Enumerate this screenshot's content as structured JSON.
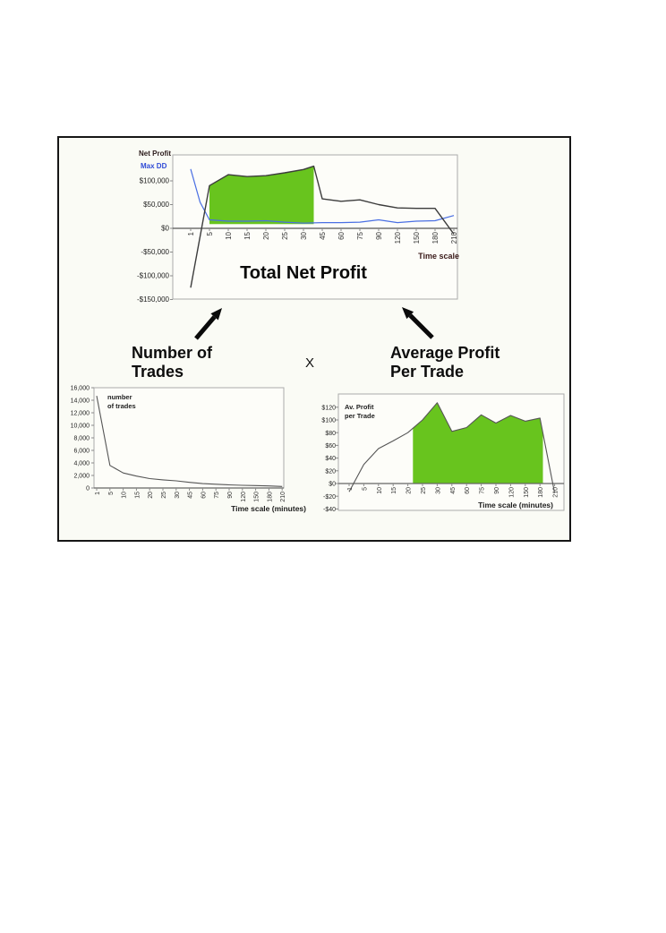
{
  "annotations": {
    "left_factor": {
      "line1": "Number of",
      "line2": "Trades"
    },
    "operator": "X",
    "right_factor": {
      "line1": "Average Profit",
      "line2": "Per Trade"
    }
  },
  "colors": {
    "green_fill": "#68c41e",
    "net_profit_line": "#3c3c3c",
    "max_dd_line": "#4a6fe3",
    "trades_line": "#555555",
    "avprofit_line": "#555555",
    "legend_net_profit": "#2b1a1a",
    "legend_max_dd": "#2f4bd6",
    "time_scale_label": "#3a1a1a",
    "axis_label_dark": "#1c1c1c"
  },
  "chart_data": [
    {
      "id": "total_net_profit",
      "type": "line",
      "title": "Total Net Profit",
      "x_axis_label": "Time scale",
      "categories": [
        "1",
        "5",
        "10",
        "15",
        "20",
        "25",
        "30",
        "45",
        "60",
        "75",
        "90",
        "120",
        "150",
        "180",
        "210"
      ],
      "y_ticks": [
        {
          "v": 100000,
          "label": "$100,000"
        },
        {
          "v": 50000,
          "label": "$50,000"
        },
        {
          "v": 0,
          "label": "$0"
        },
        {
          "v": -50000,
          "label": "-$50,000"
        },
        {
          "v": -100000,
          "label": "-$100,000"
        },
        {
          "v": -150000,
          "label": "-$150,000"
        }
      ],
      "ylim": [
        -150000,
        155000
      ],
      "legend": [
        {
          "label": "Net Profit"
        },
        {
          "label": "Max DD"
        }
      ],
      "series": [
        {
          "name": "Net Profit",
          "points": [
            [
              0,
              -125000
            ],
            [
              1,
              90000
            ],
            [
              2,
              113000
            ],
            [
              3,
              109000
            ],
            [
              4,
              111000
            ],
            [
              5,
              117000
            ],
            [
              6,
              124000
            ],
            [
              6.55,
              131000
            ],
            [
              6.75,
              100000
            ],
            [
              7,
              62000
            ],
            [
              8,
              57000
            ],
            [
              9,
              60000
            ],
            [
              10,
              50000
            ],
            [
              11,
              43000
            ],
            [
              12,
              42000
            ],
            [
              13,
              42000
            ],
            [
              14,
              -12000
            ]
          ]
        },
        {
          "name": "Max DD",
          "points": [
            [
              0,
              125000
            ],
            [
              0.5,
              55000
            ],
            [
              1,
              18000
            ],
            [
              2,
              15000
            ],
            [
              3,
              15000
            ],
            [
              4,
              16000
            ],
            [
              5,
              13000
            ],
            [
              6,
              11000
            ],
            [
              7,
              12000
            ],
            [
              8,
              12000
            ],
            [
              9,
              13000
            ],
            [
              10,
              18000
            ],
            [
              11,
              12000
            ],
            [
              12,
              15000
            ],
            [
              13,
              16000
            ],
            [
              14,
              27000
            ]
          ]
        }
      ],
      "highlight": {
        "from": 1,
        "to": 6.55,
        "bottom": 9000
      }
    },
    {
      "id": "number_of_trades",
      "type": "line",
      "inner_label": {
        "line1": "number",
        "line2": "of trades"
      },
      "x_axis_label": "Time scale (minutes)",
      "categories": [
        "1",
        "5",
        "10",
        "15",
        "20",
        "25",
        "30",
        "45",
        "60",
        "75",
        "90",
        "120",
        "150",
        "180",
        "210"
      ],
      "y_ticks": [
        {
          "v": 16000,
          "label": "16,000"
        },
        {
          "v": 14000,
          "label": "14,000"
        },
        {
          "v": 12000,
          "label": "12,000"
        },
        {
          "v": 10000,
          "label": "10,000"
        },
        {
          "v": 8000,
          "label": "8,000"
        },
        {
          "v": 6000,
          "label": "6,000"
        },
        {
          "v": 4000,
          "label": "4,000"
        },
        {
          "v": 2000,
          "label": "2,000"
        },
        {
          "v": 0,
          "label": "0"
        }
      ],
      "ylim": [
        0,
        16000
      ],
      "series": [
        {
          "name": "number of trades",
          "points": [
            [
              0,
              14700
            ],
            [
              1,
              3600
            ],
            [
              2,
              2400
            ],
            [
              3,
              1900
            ],
            [
              4,
              1500
            ],
            [
              5,
              1300
            ],
            [
              6,
              1150
            ],
            [
              7,
              900
            ],
            [
              8,
              700
            ],
            [
              9,
              600
            ],
            [
              10,
              500
            ],
            [
              11,
              430
            ],
            [
              12,
              380
            ],
            [
              13,
              330
            ],
            [
              14,
              250
            ]
          ]
        }
      ]
    },
    {
      "id": "av_profit_per_trade",
      "type": "line",
      "inner_label": {
        "line1": "Av. Profit",
        "line2": "per Trade"
      },
      "x_axis_label": "Time scale (minutes)",
      "categories": [
        "1",
        "5",
        "10",
        "15",
        "20",
        "25",
        "30",
        "45",
        "60",
        "75",
        "90",
        "120",
        "150",
        "180",
        "210"
      ],
      "y_ticks": [
        {
          "v": 120,
          "label": "$120"
        },
        {
          "v": 100,
          "label": "$100"
        },
        {
          "v": 80,
          "label": "$80"
        },
        {
          "v": 60,
          "label": "$60"
        },
        {
          "v": 40,
          "label": "$40"
        },
        {
          "v": 20,
          "label": "$20"
        },
        {
          "v": 0,
          "label": "$0"
        },
        {
          "v": -20,
          "label": "-$20"
        },
        {
          "v": -40,
          "label": "-$40"
        }
      ],
      "ylim": [
        -45,
        140
      ],
      "series": [
        {
          "name": "Av. Profit per Trade",
          "points": [
            [
              0,
              -13
            ],
            [
              1,
              30
            ],
            [
              2,
              55
            ],
            [
              3,
              67
            ],
            [
              4,
              80
            ],
            [
              5,
              100
            ],
            [
              6,
              127
            ],
            [
              7,
              82
            ],
            [
              8,
              88
            ],
            [
              9,
              108
            ],
            [
              10,
              95
            ],
            [
              11,
              107
            ],
            [
              12,
              98
            ],
            [
              13,
              103
            ],
            [
              14,
              -15
            ]
          ]
        }
      ],
      "highlight": {
        "from": 4.35,
        "to": 13.2,
        "bottom": 0
      }
    }
  ]
}
